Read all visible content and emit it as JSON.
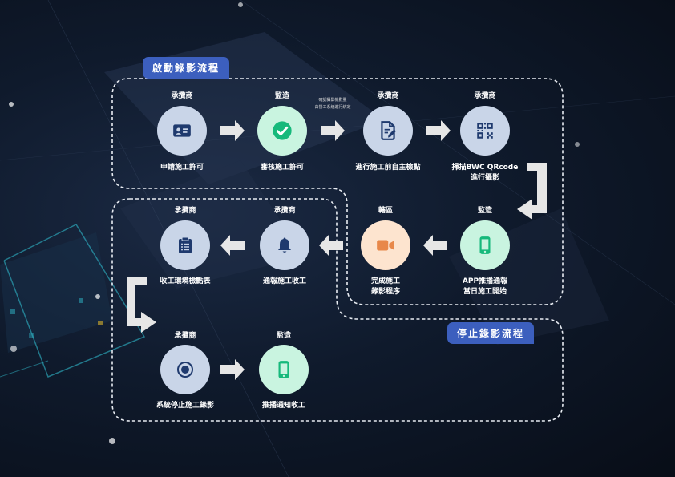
{
  "start_flow": {
    "title": "啟動錄影流程"
  },
  "stop_flow": {
    "title": "停止錄影流程"
  },
  "steps": [
    {
      "role": "承攬商",
      "label": "申請施工許可",
      "icon": "id-card-icon"
    },
    {
      "role": "監造",
      "label": "審核施工許可",
      "icon": "check-circle-icon"
    },
    {
      "role": "承攬商",
      "label": "進行施工前自主檢點",
      "icon": "document-edit-icon",
      "note_line1": "確認攝影機數量",
      "note_line2": "由營工系統進行綁定"
    },
    {
      "role": "承攬商",
      "label_line1": "掃描BWC QRcode",
      "label_line2": "進行攝影",
      "icon": "qrcode-icon"
    },
    {
      "role": "監造",
      "label_line1": "APP推播通報",
      "label_line2": "當日施工開始",
      "icon": "smartphone-icon"
    },
    {
      "role": "轄區",
      "label_line1": "完成施工",
      "label_line2": "錄影程序",
      "icon": "video-camera-icon"
    },
    {
      "role": "承攬商",
      "label": "通報施工收工",
      "icon": "bell-icon"
    },
    {
      "role": "承攬商",
      "label": "收工環境檢點表",
      "icon": "clipboard-icon"
    },
    {
      "role": "承攬商",
      "label": "系統停止施工錄影",
      "icon": "record-stop-icon"
    },
    {
      "role": "監造",
      "label": "推播通知收工",
      "icon": "smartphone-icon"
    }
  ],
  "colors": {
    "tag": "#3c5fbe",
    "icon_dark": "#1f3a6e",
    "icon_green": "#16b97b",
    "icon_orange": "#e8884a",
    "arrow": "#e6e6e6"
  }
}
